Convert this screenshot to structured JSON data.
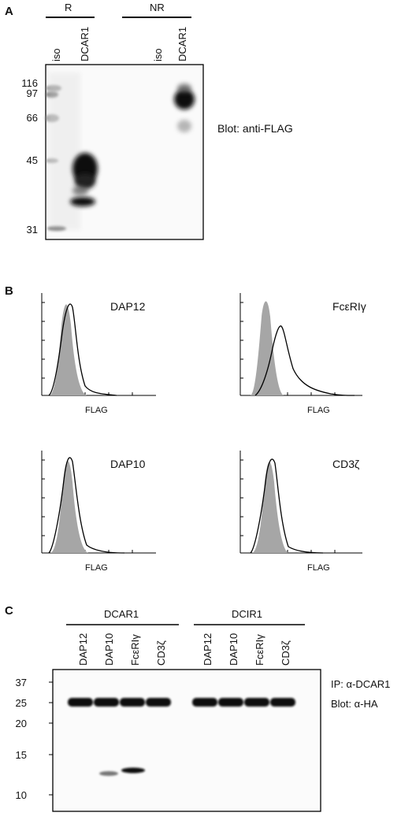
{
  "panel_a": {
    "letter": "A",
    "group_reducing": "R",
    "group_nonreducing": "NR",
    "lanes": [
      "iso",
      "DCAR1",
      "iso",
      "DCAR1"
    ],
    "mw_markers": [
      "116",
      "97",
      "66",
      "45",
      "31"
    ],
    "blot_label": "Blot: anti-FLAG"
  },
  "panel_b": {
    "letter": "B",
    "histograms": [
      {
        "title": "DAP12",
        "xlabel": "FLAG",
        "shift": "none"
      },
      {
        "title": "FcεRIγ",
        "xlabel": "FLAG",
        "shift": "positive"
      },
      {
        "title": "DAP10",
        "xlabel": "FLAG",
        "shift": "none"
      },
      {
        "title": "CD3ζ",
        "xlabel": "FLAG",
        "shift": "none"
      }
    ]
  },
  "panel_c": {
    "letter": "C",
    "group_left": "DCAR1",
    "group_right": "DCIR1",
    "lanes_left": [
      "DAP12",
      "DAP10",
      "FcεRIγ",
      "CD3ζ"
    ],
    "lanes_right": [
      "DAP12",
      "DAP10",
      "FcεRIγ",
      "CD3ζ"
    ],
    "mw_markers": [
      "37",
      "25",
      "20",
      "15",
      "10"
    ],
    "ip_label": "IP: α-DCAR1",
    "blot_label": "Blot: α-HA"
  }
}
